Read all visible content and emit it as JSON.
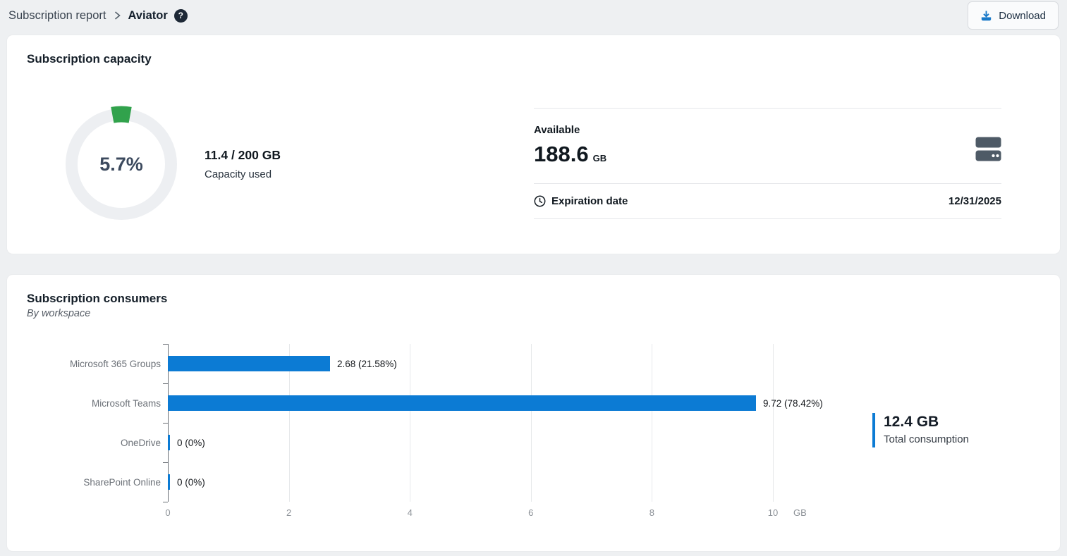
{
  "header": {
    "breadcrumb": {
      "parent": "Subscription report",
      "current": "Aviator"
    },
    "download_label": "Download"
  },
  "icons": {
    "help_glyph": "?"
  },
  "capacity_card": {
    "title": "Subscription capacity",
    "donut": {
      "percent_label": "5.7%",
      "percent_value": 5.7,
      "used_color": "#31a24c",
      "track_color": "#edeff2"
    },
    "usage": {
      "ratio": "11.4 / 200 GB",
      "caption": "Capacity used"
    },
    "available": {
      "label": "Available",
      "value": "188.6",
      "unit": "GB"
    },
    "expiration": {
      "label": "Expiration date",
      "value": "12/31/2025"
    }
  },
  "consumers_card": {
    "title": "Subscription consumers",
    "subtitle": "By workspace",
    "total": {
      "value": "12.4 GB",
      "label": "Total consumption"
    }
  },
  "chart_data": {
    "type": "bar",
    "orientation": "horizontal",
    "categories": [
      "Microsoft 365 Groups",
      "Microsoft Teams",
      "OneDrive",
      "SharePoint Online"
    ],
    "values": [
      2.68,
      9.72,
      0,
      0
    ],
    "bar_labels": [
      "2.68 (21.58%)",
      "9.72 (78.42%)",
      "0 (0%)",
      "0 (0%)"
    ],
    "xlim": [
      0,
      10
    ],
    "x_ticks": [
      0,
      2,
      4,
      6,
      8,
      10
    ],
    "x_unit": "GB",
    "bar_color": "#0c7bd4",
    "accent_color": "#0c7bd4",
    "grid": true
  }
}
